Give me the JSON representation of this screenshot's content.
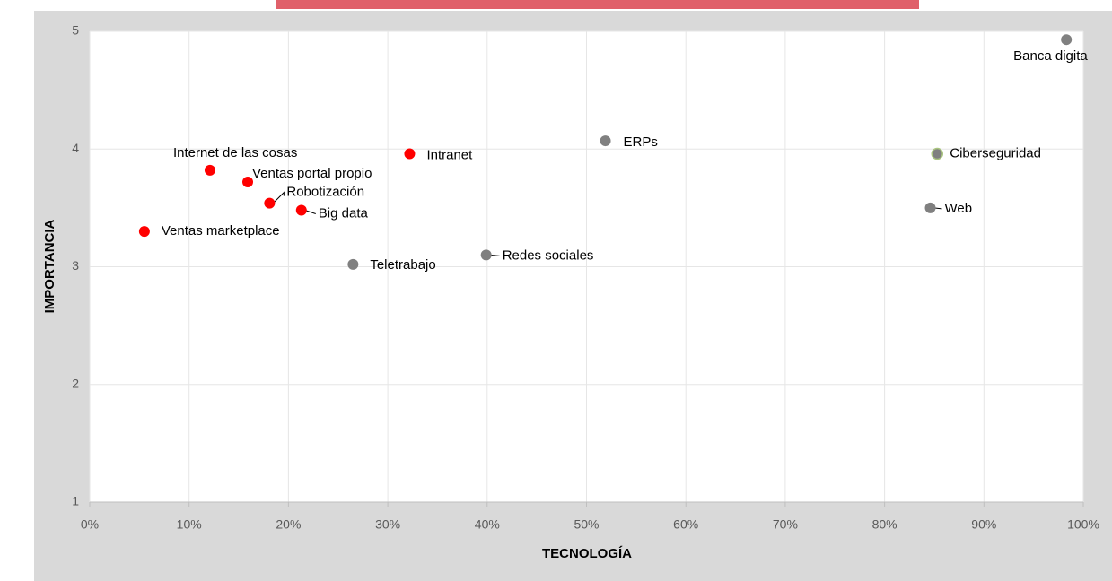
{
  "chart_data": {
    "type": "scatter",
    "xlabel": "TECNOLOGÍA",
    "ylabel": "IMPORTANCIA",
    "labels": [
      "Ventas marketplace",
      "Internet de las cosas",
      "Ventas portal propio",
      "Robotización",
      "Big data",
      "Intranet",
      "Teletrabajo",
      "Redes sociales",
      "ERPs",
      "Ciberseguridad",
      "Web",
      "Banca digita"
    ],
    "x": [
      5.5,
      12.1,
      15.9,
      18.1,
      21.3,
      32.2,
      26.5,
      39.9,
      51.9,
      85.3,
      84.6,
      98.3
    ],
    "y": [
      3.3,
      3.82,
      3.72,
      3.54,
      3.48,
      3.96,
      3.02,
      3.1,
      4.07,
      3.96,
      3.5,
      4.93
    ],
    "colors": [
      "#ff0000",
      "#ff0000",
      "#ff0000",
      "#ff0000",
      "#ff0000",
      "#ff0000",
      "#808080",
      "#808080",
      "#808080",
      "#808080",
      "#808080",
      "#808080"
    ],
    "xlim": [
      0,
      100
    ],
    "xticks": [
      {
        "value": 0,
        "label": "0%"
      },
      {
        "value": 10,
        "label": "10%"
      },
      {
        "value": 20,
        "label": "20%"
      },
      {
        "value": 30,
        "label": "30%"
      },
      {
        "value": 40,
        "label": "40%"
      },
      {
        "value": 50,
        "label": "50%"
      },
      {
        "value": 60,
        "label": "60%"
      },
      {
        "value": 70,
        "label": "70%"
      },
      {
        "value": 80,
        "label": "80%"
      },
      {
        "value": 90,
        "label": "90%"
      },
      {
        "value": 100,
        "label": "100%"
      }
    ],
    "ylim": [
      1,
      5
    ],
    "yticks": [
      1,
      2,
      3,
      4,
      5
    ],
    "grid": true
  }
}
